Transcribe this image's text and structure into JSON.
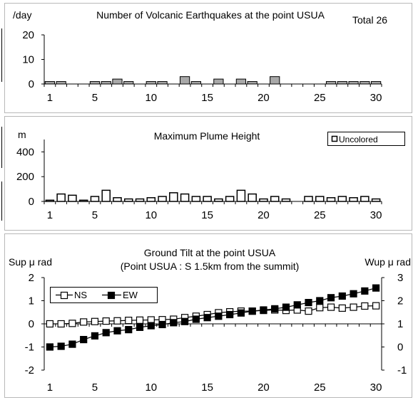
{
  "chart_data": [
    {
      "type": "bar",
      "title": "Number of Volcanic Earthquakes at the point USUA",
      "ylabel": "/day",
      "total_label": "Total 26",
      "ylim": [
        0,
        20
      ],
      "yticks": [
        0,
        10,
        20
      ],
      "x": [
        1,
        2,
        3,
        4,
        5,
        6,
        7,
        8,
        9,
        10,
        11,
        12,
        13,
        14,
        15,
        16,
        17,
        18,
        19,
        20,
        21,
        22,
        23,
        24,
        25,
        26,
        27,
        28,
        29,
        30
      ],
      "xticks": [
        1,
        5,
        10,
        15,
        20,
        25,
        30
      ],
      "values": [
        1,
        1,
        0,
        0,
        1,
        1,
        2,
        1,
        0,
        1,
        1,
        0,
        3,
        1,
        0,
        2,
        0,
        2,
        1,
        0,
        3,
        0,
        0,
        0,
        0,
        1,
        1,
        1,
        1,
        1
      ],
      "bar_color": "#a9a9a9",
      "grid": false
    },
    {
      "type": "bar",
      "title": "Maximum Plume Height",
      "ylabel": "m",
      "ylim": [
        0,
        500
      ],
      "yticks": [
        0,
        200,
        400
      ],
      "x": [
        1,
        2,
        3,
        4,
        5,
        6,
        7,
        8,
        9,
        10,
        11,
        12,
        13,
        14,
        15,
        16,
        17,
        18,
        19,
        20,
        21,
        22,
        23,
        24,
        25,
        26,
        27,
        28,
        29,
        30
      ],
      "xticks": [
        1,
        5,
        10,
        15,
        20,
        25,
        30
      ],
      "values": [
        10,
        60,
        50,
        10,
        40,
        90,
        30,
        20,
        20,
        30,
        40,
        70,
        60,
        40,
        40,
        20,
        40,
        90,
        60,
        20,
        40,
        20,
        0,
        40,
        40,
        30,
        40,
        30,
        40,
        20
      ],
      "legend": [
        {
          "name": "Uncolored",
          "marker": "hollow-square"
        }
      ],
      "legend_position": "top-right",
      "bar_color": "#ffffff",
      "grid": false
    },
    {
      "type": "line",
      "title": "Ground Tilt at the point USUA",
      "subtitle": "(Point USUA : S 1.5km from the summit)",
      "ylabel": "Sup μ rad",
      "y2label": "Wup μ rad",
      "ylim": [
        -2,
        2
      ],
      "yticks": [
        -2,
        -1,
        0,
        1,
        2
      ],
      "y2lim": [
        -1,
        3
      ],
      "y2ticks": [
        -1,
        0,
        1,
        2,
        3
      ],
      "x": [
        1,
        2,
        3,
        4,
        5,
        6,
        7,
        8,
        9,
        10,
        11,
        12,
        13,
        14,
        15,
        16,
        17,
        18,
        19,
        20,
        21,
        22,
        23,
        24,
        25,
        26,
        27,
        28,
        29,
        30
      ],
      "xticks": [
        1,
        5,
        10,
        15,
        20,
        25,
        30
      ],
      "series": [
        {
          "name": "NS",
          "marker": "hollow-square",
          "axis": "left",
          "values": [
            0.0,
            0.0,
            0.02,
            0.08,
            0.1,
            0.12,
            0.13,
            0.15,
            0.16,
            0.17,
            0.18,
            0.2,
            0.27,
            0.33,
            0.4,
            0.48,
            0.52,
            0.55,
            0.55,
            0.58,
            0.6,
            0.58,
            0.6,
            0.55,
            0.7,
            0.72,
            0.68,
            0.72,
            0.77,
            0.78
          ]
        },
        {
          "name": "EW",
          "marker": "filled-square",
          "axis": "right",
          "values": [
            0.0,
            0.03,
            0.12,
            0.32,
            0.48,
            0.62,
            0.7,
            0.75,
            0.85,
            0.92,
            0.97,
            1.05,
            1.1,
            1.2,
            1.27,
            1.33,
            1.4,
            1.47,
            1.55,
            1.6,
            1.65,
            1.72,
            1.82,
            1.92,
            2.0,
            2.13,
            2.2,
            2.3,
            2.42,
            2.55
          ]
        }
      ],
      "legend_position": "top-left",
      "grid": false
    }
  ]
}
